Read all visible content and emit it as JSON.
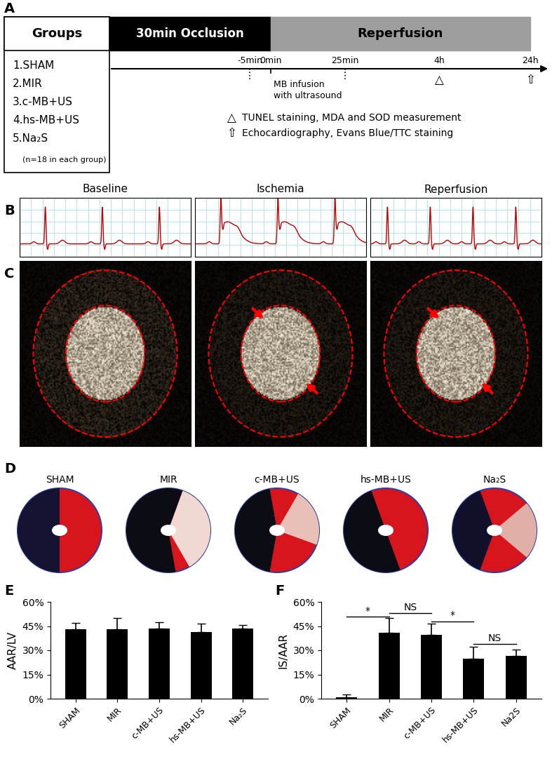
{
  "panel_labels": [
    "A",
    "B",
    "C",
    "D",
    "E",
    "F"
  ],
  "timeline": {
    "groups_header": "Groups",
    "groups": [
      "1.SHAM",
      "2.MIR",
      "3.c-MB+US",
      "4.hs-MB+US",
      "5.Na₂S"
    ],
    "group_note": "(n=18 in each group)",
    "phases": [
      "30min Occlusion",
      "Reperfusion"
    ],
    "times": [
      "-5min",
      "0min",
      "25min",
      "4h",
      "24h"
    ],
    "infusion": [
      "MB infusion",
      "with ultrasound"
    ],
    "legend": [
      {
        "symbol": "△",
        "text": "TUNEL staining, MDA and SOD measurement"
      },
      {
        "symbol": "⇧",
        "text": "Echocardiography, Evans Blue/TTC staining"
      }
    ]
  },
  "ecg_titles": [
    "Baseline",
    "Ischemia",
    "Reperfusion"
  ],
  "slice_labels": [
    "SHAM",
    "MIR",
    "c-MB+US",
    "hs-MB+US",
    "Na₂S"
  ],
  "chart_data": [
    {
      "type": "bar",
      "categories": [
        "SHAM",
        "MIR",
        "c-MB+US",
        "hs-MB+US",
        "Na₂S"
      ],
      "values": [
        43,
        43,
        43.5,
        41.5,
        43.5
      ],
      "errors": [
        4,
        7,
        4,
        5,
        2
      ],
      "color": "#000000",
      "y_label": "AAR/LV",
      "ylim": [
        0,
        60
      ],
      "yticks": [
        {
          "value": 0,
          "label": "0%"
        },
        {
          "value": 15,
          "label": "15%"
        },
        {
          "value": 30,
          "label": "30%"
        },
        {
          "value": 45,
          "label": "45%"
        },
        {
          "value": 60,
          "label": "60%"
        }
      ]
    },
    {
      "type": "bar",
      "categories": [
        "SHAM",
        "MIR",
        "c-MB+US",
        "hs-MB+US",
        "Na2S"
      ],
      "values": [
        1,
        41,
        39.5,
        25,
        26.5
      ],
      "errors": [
        1.5,
        9,
        7,
        7,
        4
      ],
      "color": "#000000",
      "y_label": "IS/AAR",
      "ylim": [
        0,
        60
      ],
      "yticks": [
        {
          "value": 0,
          "label": "0%"
        },
        {
          "value": 15,
          "label": "15%"
        },
        {
          "value": 30,
          "label": "30%"
        },
        {
          "value": 45,
          "label": "45%"
        },
        {
          "value": 60,
          "label": "60%"
        }
      ],
      "annotations": [
        {
          "text": "*",
          "between": [
            "SHAM",
            "MIR"
          ],
          "y": 51
        },
        {
          "text": "NS",
          "between": [
            "MIR",
            "c-MB+US"
          ],
          "y": 53
        },
        {
          "text": "*",
          "between": [
            "c-MB+US",
            "hs-MB+US"
          ],
          "y": 48
        },
        {
          "text": "NS",
          "between": [
            "hs-MB+US",
            "Na2S"
          ],
          "y": 34
        }
      ]
    }
  ]
}
